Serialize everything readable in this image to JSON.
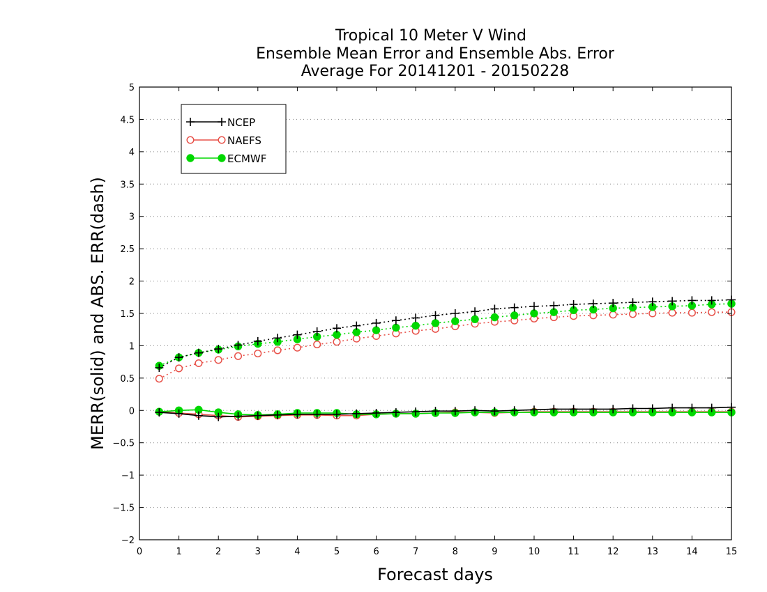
{
  "chart_data": {
    "type": "line",
    "title": [
      "Tropical 10 Meter V Wind",
      "Ensemble Mean Error and Ensemble Abs. Error",
      "Average For 20141201 - 20150228"
    ],
    "xlabel": "Forecast days",
    "ylabel": "MERR(solid) and ABS. ERR(dash)",
    "xlim": [
      0,
      15
    ],
    "ylim": [
      -2,
      5
    ],
    "xticks": [
      "0",
      "1",
      "2",
      "3",
      "4",
      "5",
      "6",
      "7",
      "8",
      "9",
      "10",
      "11",
      "12",
      "13",
      "14",
      "15"
    ],
    "yticks": [
      "5",
      "4.5",
      "4",
      "3.5",
      "3",
      "2.5",
      "2",
      "1.5",
      "1",
      "0.5",
      "0",
      "−0.5",
      "−1",
      "−1.5",
      "−2"
    ],
    "grid": true,
    "legend_position": "top-left",
    "x": [
      0.5,
      1,
      1.5,
      2,
      2.5,
      3,
      3.5,
      4,
      4.5,
      5,
      5.5,
      6,
      6.5,
      7,
      7.5,
      8,
      8.5,
      9,
      9.5,
      10,
      10.5,
      11,
      11.5,
      12,
      12.5,
      13,
      13.5,
      14,
      14.5,
      15
    ],
    "series": [
      {
        "name": "NCEP",
        "color": "#000000",
        "marker": "plus",
        "merr": [
          -0.03,
          -0.05,
          -0.08,
          -0.1,
          -0.09,
          -0.08,
          -0.07,
          -0.06,
          -0.06,
          -0.06,
          -0.05,
          -0.04,
          -0.03,
          -0.02,
          -0.01,
          -0.01,
          0.0,
          -0.01,
          0.0,
          0.01,
          0.02,
          0.02,
          0.02,
          0.02,
          0.03,
          0.03,
          0.04,
          0.04,
          0.04,
          0.05
        ],
        "abs_err": [
          0.66,
          0.82,
          0.89,
          0.95,
          1.01,
          1.07,
          1.12,
          1.17,
          1.22,
          1.27,
          1.31,
          1.35,
          1.39,
          1.43,
          1.47,
          1.5,
          1.53,
          1.57,
          1.59,
          1.61,
          1.62,
          1.64,
          1.65,
          1.66,
          1.67,
          1.68,
          1.69,
          1.7,
          1.7,
          1.71
        ]
      },
      {
        "name": "NAEFS",
        "color": "#e8524a",
        "marker": "open-circle",
        "merr": [
          -0.02,
          -0.04,
          -0.06,
          -0.08,
          -0.1,
          -0.09,
          -0.08,
          -0.07,
          -0.07,
          -0.08,
          -0.08,
          -0.06,
          -0.05,
          -0.05,
          -0.04,
          -0.03,
          -0.03,
          -0.04,
          -0.03,
          -0.02,
          -0.02,
          -0.02,
          -0.02,
          -0.02,
          -0.02,
          -0.02,
          -0.02,
          -0.02,
          -0.02,
          -0.02
        ],
        "abs_err": [
          0.49,
          0.65,
          0.73,
          0.78,
          0.84,
          0.88,
          0.93,
          0.97,
          1.02,
          1.06,
          1.11,
          1.15,
          1.19,
          1.23,
          1.26,
          1.3,
          1.34,
          1.37,
          1.39,
          1.42,
          1.44,
          1.46,
          1.47,
          1.48,
          1.49,
          1.5,
          1.51,
          1.51,
          1.52,
          1.52
        ]
      },
      {
        "name": "ECMWF",
        "color": "#00d800",
        "marker": "filled-circle",
        "merr": [
          -0.02,
          0.0,
          0.01,
          -0.03,
          -0.06,
          -0.07,
          -0.06,
          -0.04,
          -0.04,
          -0.04,
          -0.06,
          -0.06,
          -0.05,
          -0.05,
          -0.04,
          -0.04,
          -0.03,
          -0.03,
          -0.03,
          -0.03,
          -0.03,
          -0.03,
          -0.03,
          -0.03,
          -0.03,
          -0.03,
          -0.03,
          -0.03,
          -0.03,
          -0.03
        ],
        "abs_err": [
          0.69,
          0.82,
          0.89,
          0.94,
          0.99,
          1.03,
          1.06,
          1.1,
          1.14,
          1.17,
          1.21,
          1.24,
          1.28,
          1.31,
          1.35,
          1.38,
          1.41,
          1.44,
          1.47,
          1.5,
          1.52,
          1.55,
          1.56,
          1.58,
          1.59,
          1.6,
          1.61,
          1.62,
          1.64,
          1.65
        ]
      }
    ]
  }
}
